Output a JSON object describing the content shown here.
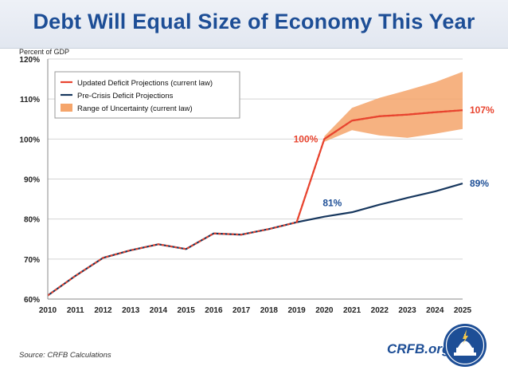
{
  "header": {
    "title": "Debt Will Equal Size of Economy This Year"
  },
  "footer": {
    "source": "Source: CRFB Calculations",
    "brand": "CRFB.org"
  },
  "colors": {
    "updated": "#e8442f",
    "precrisis": "#17375e",
    "band": "#f5a56b",
    "label_red": "#e8442f",
    "label_blue": "#1d4e96"
  },
  "chart_data": {
    "type": "line",
    "ylabel": "Percent of GDP",
    "ylim": [
      60,
      120
    ],
    "yticks": [
      "60%",
      "70%",
      "80%",
      "90%",
      "100%",
      "110%",
      "120%"
    ],
    "ytick_values": [
      60,
      70,
      80,
      90,
      100,
      110,
      120
    ],
    "x": [
      2010,
      2011,
      2012,
      2013,
      2014,
      2015,
      2016,
      2017,
      2018,
      2019,
      2020,
      2021,
      2022,
      2023,
      2024,
      2025
    ],
    "xtick_labels": [
      "2010",
      "2011",
      "2012",
      "2013",
      "2014",
      "2015",
      "2016",
      "2017",
      "2018",
      "2019",
      "2020",
      "2021",
      "2022",
      "2023",
      "2024",
      "2025"
    ],
    "grid": "horizontal",
    "legend_position": "top-left",
    "legend": [
      "Updated Deficit Projections (current law)",
      "Pre-Crisis Deficit Projections",
      "Range of Uncertainty (current law)"
    ],
    "series": [
      {
        "name": "Updated Deficit Projections (current law)",
        "x": [
          2010,
          2011,
          2012,
          2013,
          2014,
          2015,
          2016,
          2017,
          2018,
          2019,
          2020,
          2021,
          2022,
          2023,
          2024,
          2025
        ],
        "values": [
          60.9,
          65.8,
          70.3,
          72.2,
          73.7,
          72.5,
          76.4,
          76.1,
          77.5,
          79.2,
          100,
          104.6,
          105.7,
          106.1,
          106.7,
          107.2
        ]
      },
      {
        "name": "Pre-Crisis Deficit Projections",
        "x": [
          2010,
          2011,
          2012,
          2013,
          2014,
          2015,
          2016,
          2017,
          2018,
          2019,
          2020,
          2021,
          2022,
          2023,
          2024,
          2025
        ],
        "values": [
          60.9,
          65.8,
          70.3,
          72.2,
          73.7,
          72.5,
          76.4,
          76.1,
          77.5,
          79.2,
          80.6,
          81.7,
          83.6,
          85.3,
          86.9,
          88.9
        ]
      }
    ],
    "band": {
      "name": "Range of Uncertainty (current law)",
      "x": [
        2020,
        2021,
        2022,
        2023,
        2024,
        2025
      ],
      "low": [
        99.3,
        102.2,
        100.9,
        100.3,
        101.3,
        102.5
      ],
      "high": [
        100.7,
        107.8,
        110.3,
        112.2,
        114.2,
        116.8
      ]
    },
    "annotations": [
      {
        "text": "100%",
        "x": 2020,
        "y": 100,
        "series": "updated"
      },
      {
        "text": "81%",
        "x": 2020,
        "y": 80.6,
        "series": "precrisis"
      },
      {
        "text": "107%",
        "x": 2025,
        "y": 107.2,
        "series": "updated"
      },
      {
        "text": "89%",
        "x": 2025,
        "y": 88.9,
        "series": "precrisis"
      }
    ]
  }
}
